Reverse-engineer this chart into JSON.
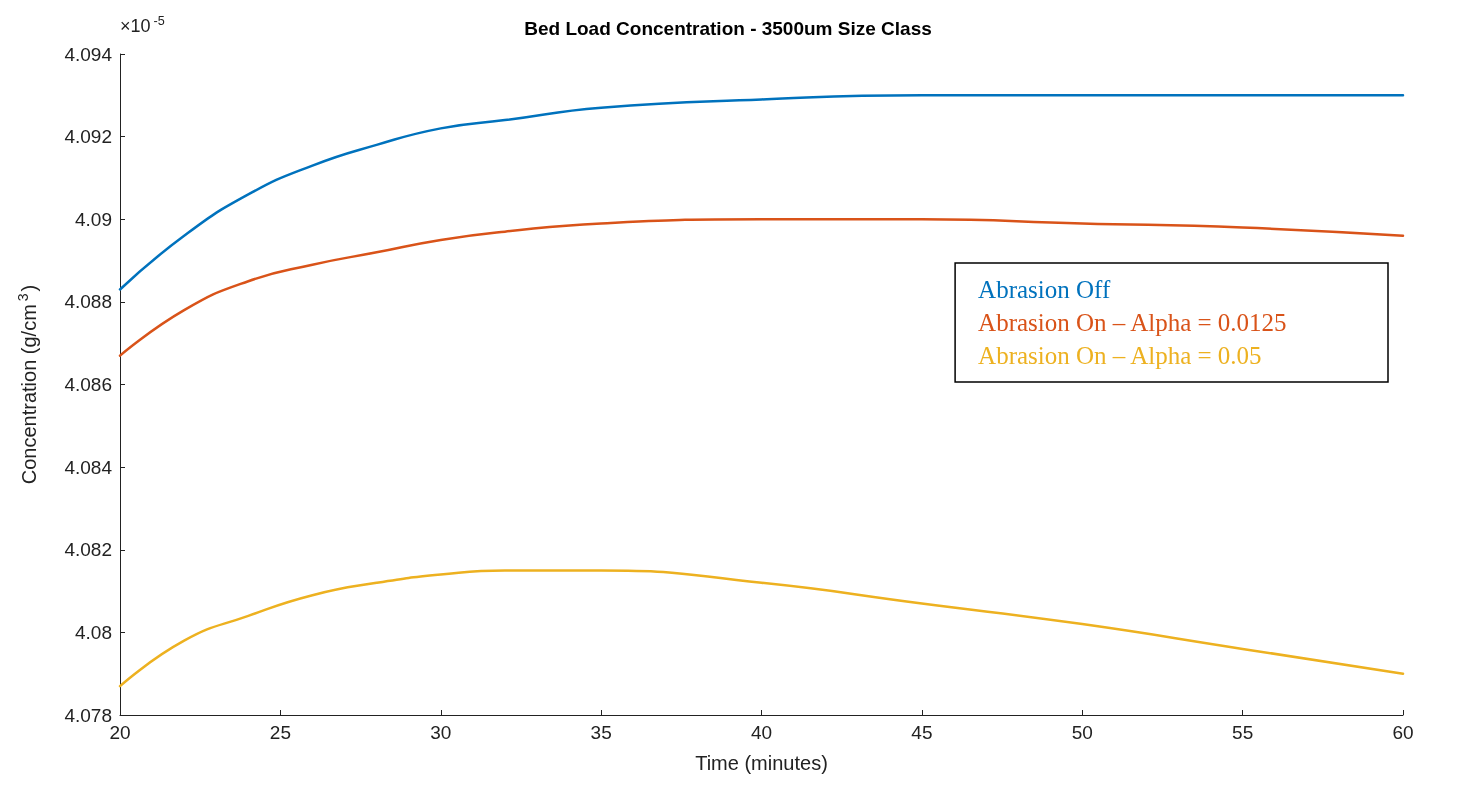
{
  "chart_data": {
    "type": "line",
    "title": "Bed Load Concentration - 3500um Size Class",
    "xlabel": "Time (minutes)",
    "ylabel": "Concentration (g/cm$^{3}$)",
    "annotations": [
      "×10$^{-5}$"
    ],
    "x": [
      20,
      22,
      24,
      26,
      28,
      30,
      32,
      35,
      40,
      45,
      50,
      55,
      60
    ],
    "series": [
      {
        "name": "Abrasion Off",
        "color": "#0072bd",
        "values": [
          4.0883,
          4.0896,
          4.0906,
          4.0913,
          4.0918,
          4.0922,
          4.0924,
          4.0927,
          4.0929,
          4.093,
          4.093,
          4.093,
          4.093
        ]
      },
      {
        "name": "Abrasion On – Alpha = 0.0125",
        "color": "#d95319",
        "values": [
          4.0867,
          4.0878,
          4.0885,
          4.0889,
          4.0892,
          4.0895,
          4.0897,
          4.0899,
          4.09,
          4.09,
          4.0899,
          4.0898,
          4.0896
        ]
      },
      {
        "name": "Abrasion On – Alpha = 0.05",
        "color": "#edb120",
        "values": [
          4.0787,
          4.0798,
          4.0804,
          4.0809,
          4.0812,
          4.0814,
          4.0815,
          4.0815,
          4.0812,
          4.0807,
          4.0802,
          4.0796,
          4.079
        ]
      }
    ],
    "xlim": [
      20,
      60
    ],
    "xticks": [
      20,
      25,
      30,
      35,
      40,
      45,
      50,
      55,
      60
    ],
    "ylim": [
      4.078,
      4.094
    ],
    "yticks": [
      4.078,
      4.08,
      4.082,
      4.084,
      4.086,
      4.088,
      4.09,
      4.092,
      4.094
    ],
    "grid": false,
    "legend": "right",
    "marker": "none",
    "line_style": "solid"
  }
}
